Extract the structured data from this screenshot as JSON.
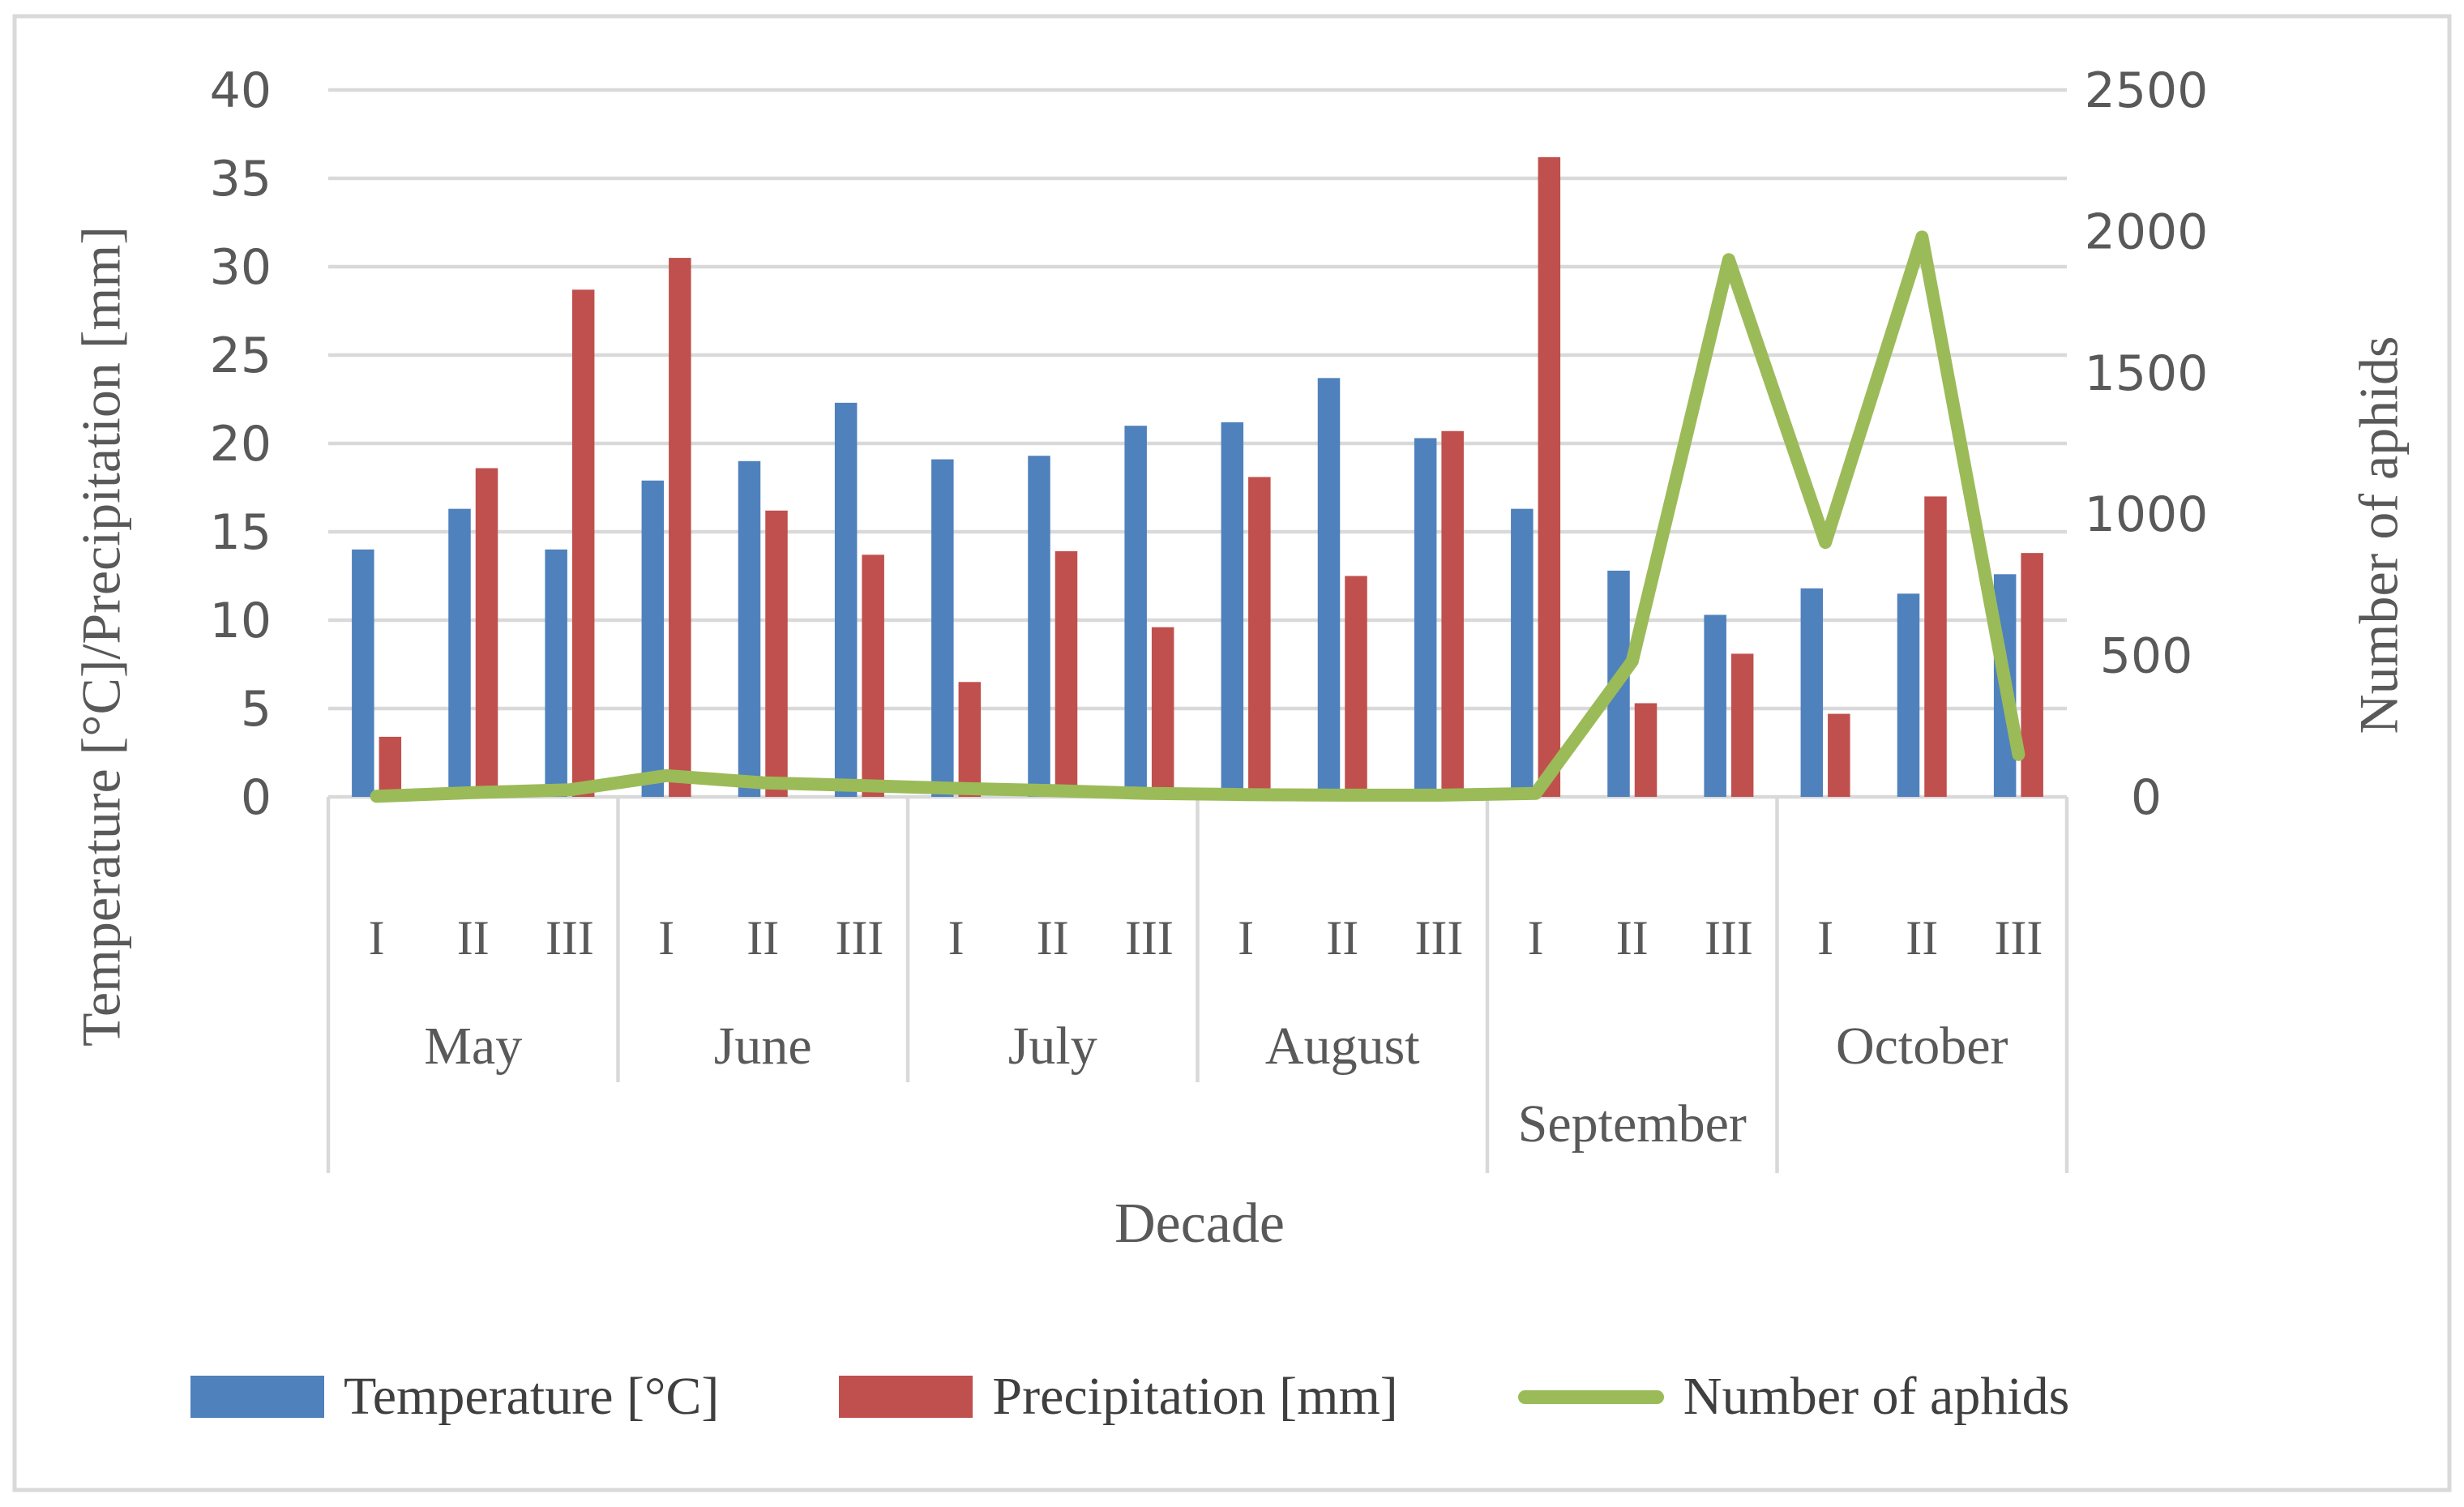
{
  "figure": {
    "background": "#ffffff",
    "border_color": "#d9d9d9",
    "text_color": "#595959",
    "gridline_color": "#d9d9d9"
  },
  "chart_data": {
    "type": "bar-line-combo",
    "x_axis": {
      "title": "Decade",
      "months": [
        "May",
        "June",
        "July",
        "August",
        "September",
        "October"
      ],
      "decade_labels": [
        "I",
        "II",
        "III"
      ]
    },
    "left_axis": {
      "title": "Temperature [°C]/Precipitation [mm]",
      "min": 0,
      "max": 40,
      "step": 5,
      "tick_labels": [
        "0",
        "5",
        "10",
        "15",
        "20",
        "25",
        "30",
        "35",
        "40"
      ]
    },
    "right_axis": {
      "title": "Number of aphids",
      "min": 0,
      "max": 2500,
      "step": 500,
      "tick_labels": [
        "0",
        "500",
        "1000",
        "1500",
        "2000",
        "2500"
      ]
    },
    "series": [
      {
        "name": "Temperature [°C]",
        "type": "bar",
        "axis": "left",
        "color": "#4F81BD",
        "values": [
          14.0,
          16.3,
          14.0,
          17.9,
          19.0,
          22.3,
          19.1,
          19.3,
          21.0,
          21.2,
          23.7,
          20.3,
          16.3,
          12.8,
          10.3,
          11.8,
          11.5,
          12.6
        ]
      },
      {
        "name": "Precipitation [mm]",
        "type": "bar",
        "axis": "left",
        "color": "#C0504D",
        "values": [
          3.4,
          18.6,
          28.7,
          30.5,
          16.2,
          13.7,
          6.5,
          13.9,
          9.6,
          18.1,
          12.5,
          20.7,
          36.2,
          5.3,
          8.1,
          4.7,
          17.0,
          13.8
        ]
      },
      {
        "name": "Number of aphids",
        "type": "line",
        "axis": "right",
        "color": "#9BBB59",
        "values": [
          2,
          15,
          25,
          75,
          50,
          40,
          30,
          22,
          12,
          8,
          6,
          6,
          12,
          480,
          1900,
          900,
          1980,
          150
        ]
      }
    ],
    "legend_position": "bottom",
    "grid": "horizontal"
  }
}
